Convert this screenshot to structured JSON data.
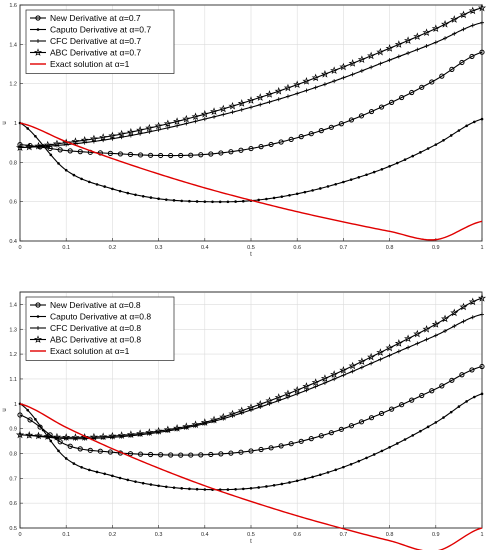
{
  "chart_data": [
    {
      "type": "line",
      "xlabel": "t",
      "ylabel": "u",
      "xlim": [
        0,
        1
      ],
      "ylim": [
        0.4,
        1.6
      ],
      "xticks": [
        "0",
        "0.1",
        "0.2",
        "0.3",
        "0.4",
        "0.5",
        "0.6",
        "0.7",
        "0.8",
        "0.9",
        "1"
      ],
      "yticks": [
        "0.4",
        "0.6",
        "0.8",
        "1",
        "1.2",
        "1.4",
        "1.6"
      ],
      "grid": true,
      "legend_position": "top-left",
      "x": [
        0,
        0.1,
        0.2,
        0.3,
        0.4,
        0.5,
        0.6,
        0.7,
        0.8,
        0.9,
        1
      ],
      "series": [
        {
          "name": "New Derivative at α=0.7",
          "color": "#000000",
          "marker": "circle",
          "values": [
            0.89,
            0.86,
            0.845,
            0.835,
            0.84,
            0.87,
            0.925,
            1.0,
            1.1,
            1.22,
            1.36
          ]
        },
        {
          "name": "Caputo Derivative at α=0.7",
          "color": "#000000",
          "marker": "dot",
          "values": [
            1.0,
            0.76,
            0.665,
            0.615,
            0.6,
            0.605,
            0.64,
            0.7,
            0.78,
            0.89,
            1.02
          ]
        },
        {
          "name": "CFC Derivative at α=0.7",
          "color": "#000000",
          "marker": "plus",
          "values": [
            0.875,
            0.89,
            0.92,
            0.965,
            1.02,
            1.08,
            1.15,
            1.23,
            1.32,
            1.41,
            1.51
          ]
        },
        {
          "name": "ABC Derivative at α=0.7",
          "color": "#000000",
          "marker": "star",
          "values": [
            0.875,
            0.9,
            0.935,
            0.985,
            1.045,
            1.115,
            1.195,
            1.285,
            1.38,
            1.48,
            1.585
          ]
        },
        {
          "name": "Exact solution at α=1",
          "color": "#e00000",
          "marker": "none",
          "values": [
            1.0,
            0.905,
            0.819,
            0.741,
            0.67,
            0.607,
            0.549,
            0.497,
            0.449,
            0.407,
            0.5
          ]
        }
      ]
    },
    {
      "type": "line",
      "xlabel": "t",
      "ylabel": "u",
      "xlim": [
        0,
        1
      ],
      "ylim": [
        0.5,
        1.45
      ],
      "xticks": [
        "0",
        "0.1",
        "0.2",
        "0.3",
        "0.4",
        "0.5",
        "0.6",
        "0.7",
        "0.8",
        "0.9",
        "1"
      ],
      "yticks": [
        "0.5",
        "0.6",
        "0.7",
        "0.8",
        "0.9",
        "1",
        "1.1",
        "1.2",
        "1.3",
        "1.4"
      ],
      "grid": true,
      "legend_position": "top-left",
      "x": [
        0,
        0.1,
        0.2,
        0.3,
        0.4,
        0.5,
        0.6,
        0.7,
        0.8,
        0.9,
        1
      ],
      "series": [
        {
          "name": "New Derivative at α=0.8",
          "color": "#000000",
          "marker": "circle",
          "values": [
            0.955,
            0.835,
            0.805,
            0.795,
            0.795,
            0.81,
            0.845,
            0.9,
            0.975,
            1.06,
            1.15
          ]
        },
        {
          "name": "Caputo Derivative at α=0.8",
          "color": "#000000",
          "marker": "dot",
          "values": [
            1.0,
            0.78,
            0.71,
            0.67,
            0.655,
            0.66,
            0.69,
            0.745,
            0.825,
            0.925,
            1.04
          ]
        },
        {
          "name": "CFC Derivative at α=0.8",
          "color": "#000000",
          "marker": "plus",
          "values": [
            0.875,
            0.86,
            0.865,
            0.885,
            0.92,
            0.975,
            1.04,
            1.115,
            1.195,
            1.275,
            1.36
          ]
        },
        {
          "name": "ABC Derivative at α=0.8",
          "color": "#000000",
          "marker": "star",
          "values": [
            0.875,
            0.865,
            0.87,
            0.89,
            0.925,
            0.985,
            1.055,
            1.135,
            1.225,
            1.32,
            1.425
          ]
        },
        {
          "name": "Exact solution at α=1",
          "color": "#e00000",
          "marker": "none",
          "values": [
            1.0,
            0.905,
            0.819,
            0.741,
            0.67,
            0.607,
            0.549,
            0.497,
            0.449,
            0.407,
            0.5
          ]
        }
      ]
    }
  ]
}
